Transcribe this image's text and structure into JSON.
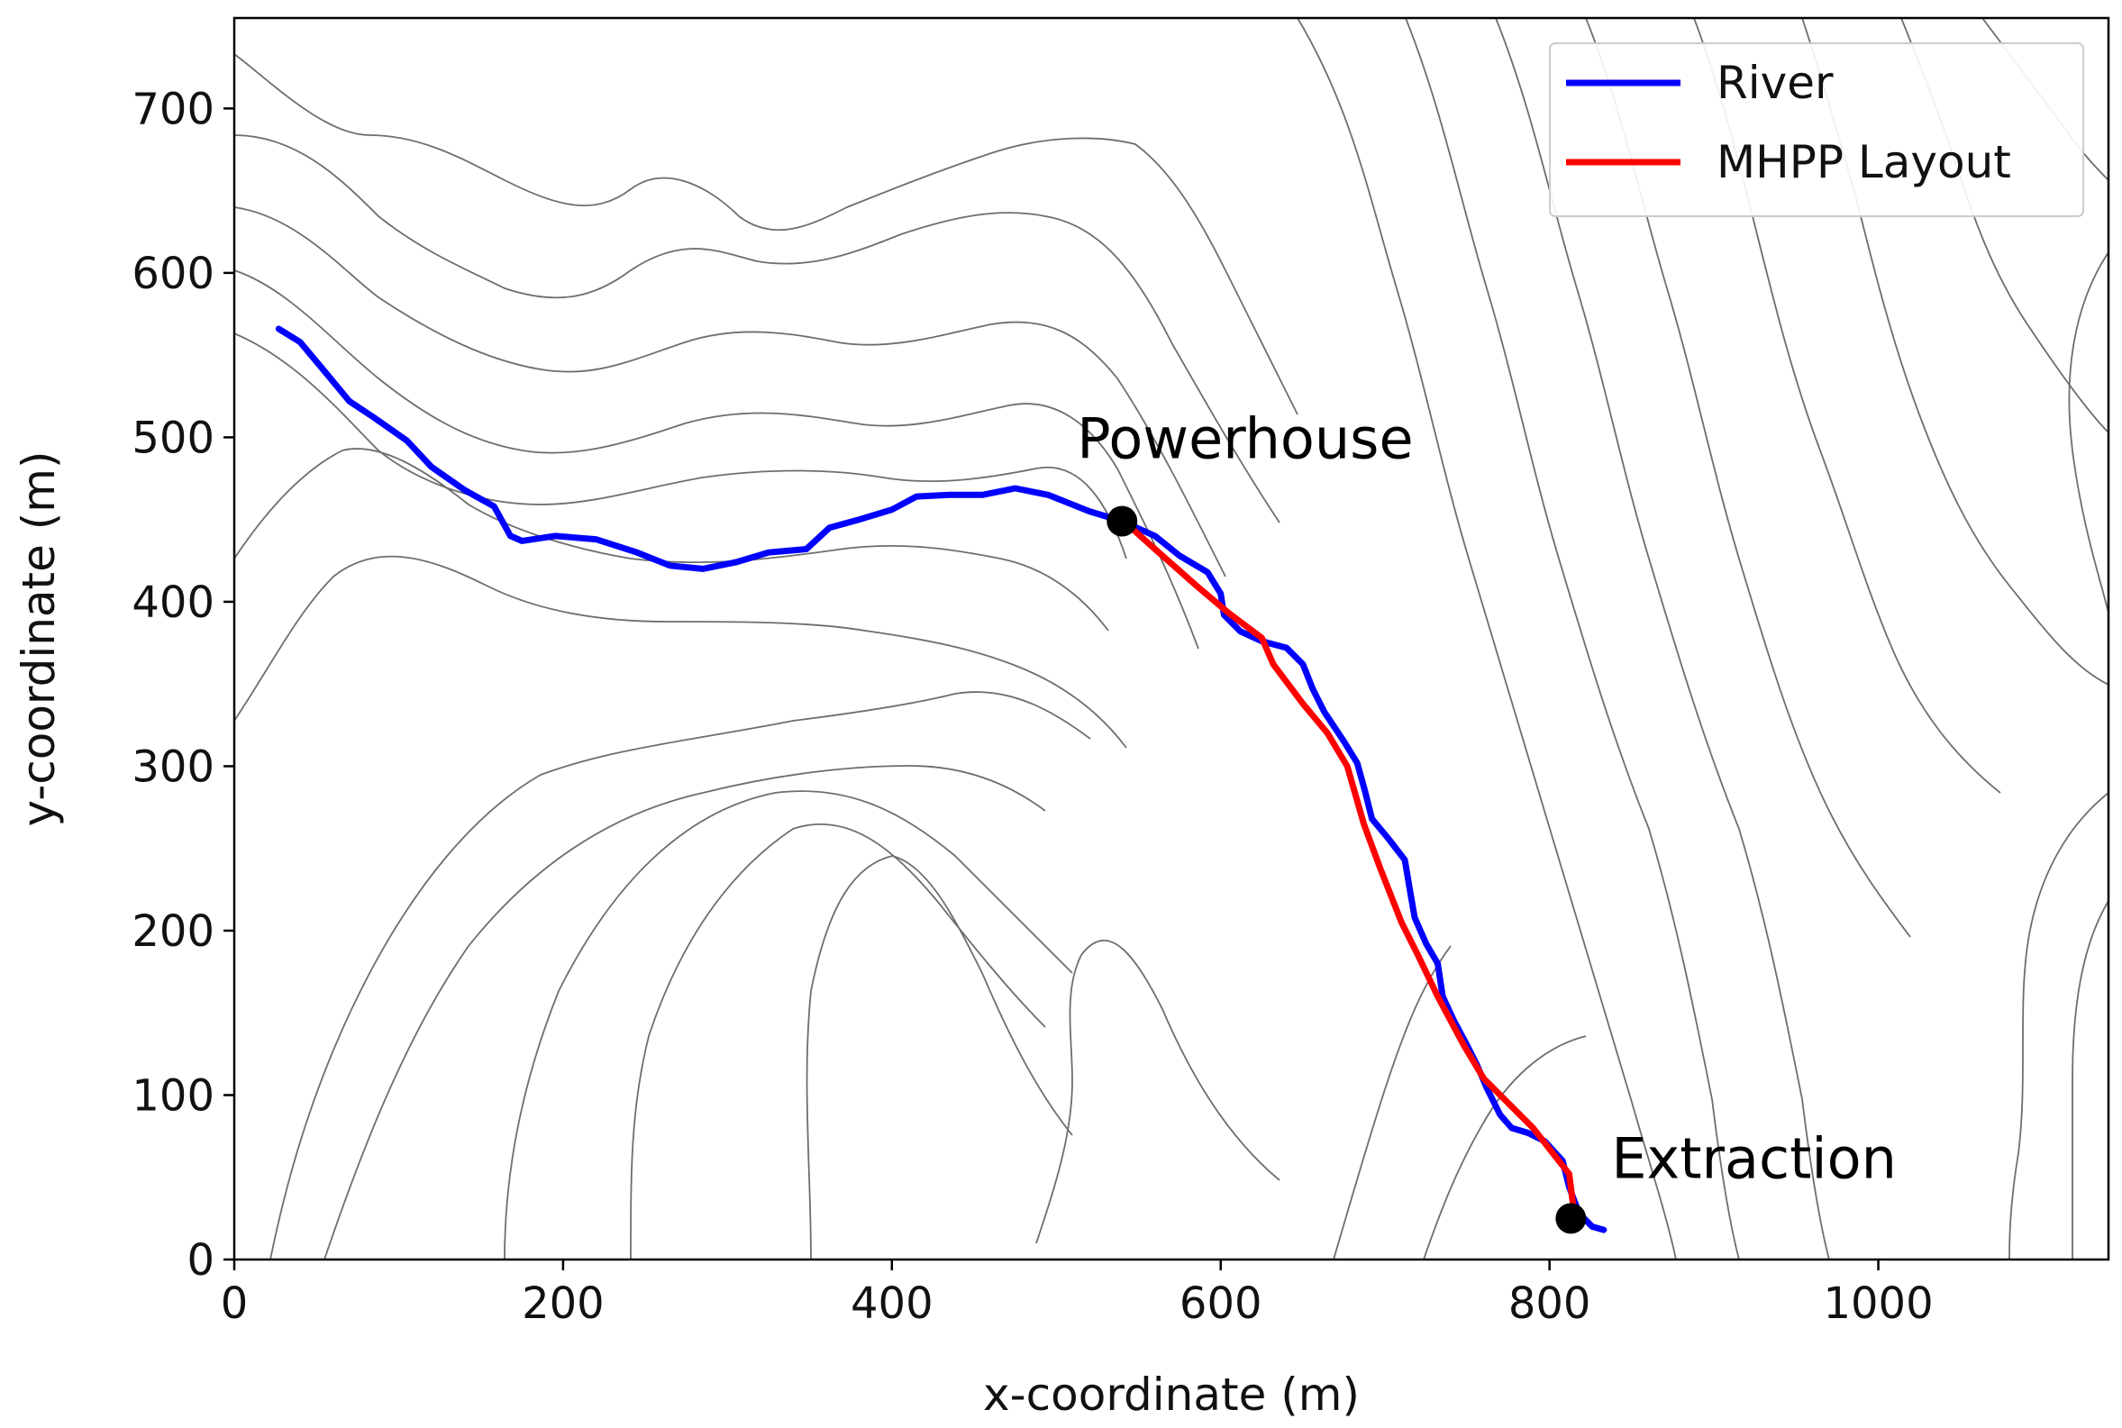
{
  "chart_data": {
    "type": "line",
    "xlabel": "x-coordinate (m)",
    "ylabel": "y-coordinate (m)",
    "xlim": [
      0,
      1140
    ],
    "ylim": [
      0,
      755
    ],
    "xticks": [
      0,
      200,
      400,
      600,
      800,
      1000
    ],
    "yticks": [
      0,
      100,
      200,
      300,
      400,
      500,
      600,
      700
    ],
    "grid": false,
    "legend_position": "top-right",
    "background_contours": true,
    "series": [
      {
        "name": "River",
        "color": "#0000ff",
        "points": [
          [
            27,
            566
          ],
          [
            40,
            558
          ],
          [
            55,
            540
          ],
          [
            70,
            522
          ],
          [
            85,
            512
          ],
          [
            105,
            498
          ],
          [
            120,
            482
          ],
          [
            140,
            468
          ],
          [
            158,
            458
          ],
          [
            168,
            440
          ],
          [
            175,
            437
          ],
          [
            195,
            440
          ],
          [
            220,
            438
          ],
          [
            245,
            430
          ],
          [
            265,
            422
          ],
          [
            285,
            420
          ],
          [
            305,
            424
          ],
          [
            325,
            430
          ],
          [
            348,
            432
          ],
          [
            362,
            445
          ],
          [
            380,
            450
          ],
          [
            400,
            456
          ],
          [
            415,
            464
          ],
          [
            435,
            465
          ],
          [
            455,
            465
          ],
          [
            475,
            469
          ],
          [
            495,
            465
          ],
          [
            520,
            455
          ],
          [
            540,
            449
          ],
          [
            560,
            440
          ],
          [
            575,
            428
          ],
          [
            592,
            418
          ],
          [
            600,
            405
          ],
          [
            602,
            392
          ],
          [
            612,
            382
          ],
          [
            625,
            376
          ],
          [
            640,
            372
          ],
          [
            650,
            362
          ],
          [
            656,
            347
          ],
          [
            663,
            333
          ],
          [
            675,
            315
          ],
          [
            683,
            302
          ],
          [
            688,
            284
          ],
          [
            692,
            268
          ],
          [
            702,
            256
          ],
          [
            712,
            243
          ],
          [
            715,
            225
          ],
          [
            718,
            208
          ],
          [
            725,
            192
          ],
          [
            732,
            180
          ],
          [
            735,
            160
          ],
          [
            742,
            145
          ],
          [
            750,
            130
          ],
          [
            756,
            118
          ],
          [
            762,
            104
          ],
          [
            770,
            88
          ],
          [
            777,
            80
          ],
          [
            787,
            77
          ],
          [
            797,
            72
          ],
          [
            808,
            60
          ],
          [
            812,
            44
          ],
          [
            818,
            28
          ],
          [
            826,
            20
          ],
          [
            833,
            18
          ]
        ]
      },
      {
        "name": "MHPP Layout",
        "color": "#ff0000",
        "points": [
          [
            540,
            450
          ],
          [
            560,
            432
          ],
          [
            585,
            410
          ],
          [
            605,
            393
          ],
          [
            625,
            378
          ],
          [
            632,
            362
          ],
          [
            650,
            338
          ],
          [
            665,
            320
          ],
          [
            677,
            300
          ],
          [
            687,
            265
          ],
          [
            697,
            238
          ],
          [
            710,
            205
          ],
          [
            720,
            185
          ],
          [
            732,
            160
          ],
          [
            748,
            130
          ],
          [
            760,
            110
          ],
          [
            790,
            80
          ],
          [
            812,
            52
          ],
          [
            815,
            28
          ]
        ]
      }
    ],
    "markers": [
      {
        "label": "Powerhouse",
        "x": 540,
        "y": 449
      },
      {
        "label": "Extraction",
        "x": 813,
        "y": 25
      }
    ],
    "marker_color": "#000000",
    "contour_color": "#6e6e6e"
  }
}
